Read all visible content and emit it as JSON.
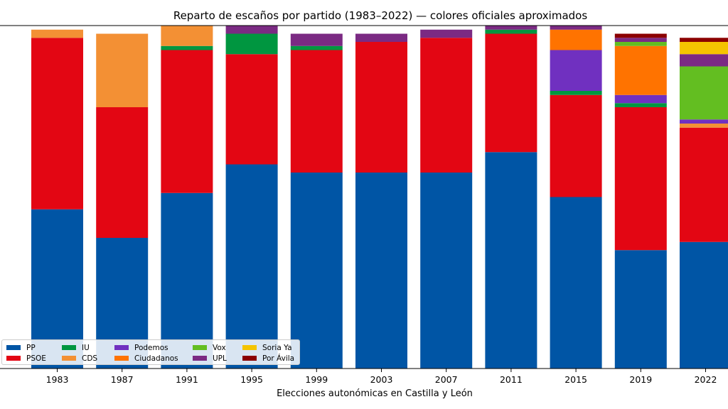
{
  "chart_data": {
    "type": "bar",
    "stacked": true,
    "title": "Reparto de escaños por partido (1983–2022) — colores oficiales aproximados",
    "xlabel": "Elecciones autonómicas en Castilla y León",
    "ylabel": "",
    "ylim": [
      0,
      84
    ],
    "grid": false,
    "legend_placement": "lower-left",
    "categories": [
      "1983",
      "1987",
      "1991",
      "1995",
      "1999",
      "2003",
      "2007",
      "2011",
      "2015",
      "2019",
      "2022"
    ],
    "series": [
      {
        "name": "PP",
        "color": "#0055a5",
        "values": [
          39,
          32,
          43,
          50,
          48,
          48,
          48,
          53,
          42,
          29,
          31
        ]
      },
      {
        "name": "PSOE",
        "color": "#e30613",
        "values": [
          42,
          32,
          35,
          27,
          30,
          32,
          33,
          29,
          25,
          35,
          28
        ]
      },
      {
        "name": "IU",
        "color": "#009640",
        "values": [
          0,
          0,
          1,
          5,
          1,
          0,
          0,
          1,
          1,
          1,
          0
        ]
      },
      {
        "name": "CDS",
        "color": "#f39034",
        "values": [
          2,
          18,
          5,
          0,
          0,
          0,
          0,
          0,
          0,
          0,
          1
        ]
      },
      {
        "name": "Podemos",
        "color": "#7030c0",
        "values": [
          0,
          0,
          0,
          0,
          0,
          0,
          0,
          0,
          10,
          2,
          1
        ]
      },
      {
        "name": "Ciudadanos",
        "color": "#ff7300",
        "values": [
          0,
          0,
          0,
          0,
          0,
          0,
          0,
          0,
          5,
          12,
          0
        ]
      },
      {
        "name": "Vox",
        "color": "#63be21",
        "values": [
          0,
          0,
          0,
          0,
          0,
          0,
          0,
          0,
          0,
          1,
          13
        ]
      },
      {
        "name": "UPL",
        "color": "#7b2a83",
        "values": [
          0,
          0,
          0,
          2,
          3,
          2,
          2,
          1,
          1,
          1,
          3
        ]
      },
      {
        "name": "Soria Ya",
        "color": "#f5c400",
        "values": [
          0,
          0,
          0,
          0,
          0,
          0,
          0,
          0,
          0,
          0,
          3
        ]
      },
      {
        "name": "Por Ávila",
        "color": "#8b0000",
        "values": [
          0,
          0,
          0,
          0,
          0,
          0,
          0,
          0,
          0,
          1,
          1
        ]
      }
    ]
  }
}
